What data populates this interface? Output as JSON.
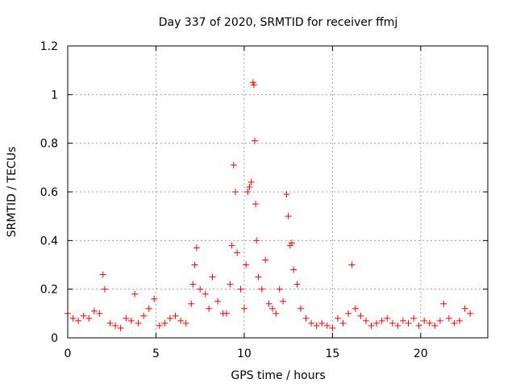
{
  "chart_data": {
    "type": "scatter",
    "title": "Day 337 of 2020, SRMTID for receiver ffmj",
    "xlabel": "GPS time / hours",
    "ylabel": "SRMTID / TECUs",
    "xlim": [
      0,
      23.8
    ],
    "ylim": [
      0,
      1.2
    ],
    "xticks": [
      0,
      5,
      10,
      15,
      20
    ],
    "xtick_labels": [
      "0",
      "5",
      "10",
      "15",
      "20"
    ],
    "yticks": [
      0,
      0.2,
      0.4,
      0.6,
      0.8,
      1,
      1.2
    ],
    "ytick_labels": [
      "0",
      "0.2",
      "0.4",
      "0.6",
      "0.8",
      "1",
      "1.2"
    ],
    "grid": true,
    "marker": "+",
    "color": "#ff0000",
    "series": [
      {
        "name": "SRMTID",
        "x": [
          0.0,
          0.3,
          0.6,
          0.9,
          1.2,
          1.5,
          1.8,
          2.0,
          2.1,
          2.4,
          2.7,
          3.0,
          3.3,
          3.6,
          3.8,
          4.0,
          4.3,
          4.6,
          4.9,
          5.2,
          5.5,
          5.8,
          6.1,
          6.4,
          6.7,
          7.0,
          7.1,
          7.2,
          7.3,
          7.5,
          7.8,
          8.0,
          8.2,
          8.5,
          8.8,
          9.0,
          9.2,
          9.3,
          9.4,
          9.5,
          9.6,
          9.8,
          10.0,
          10.1,
          10.2,
          10.3,
          10.4,
          10.5,
          10.55,
          10.6,
          10.65,
          10.7,
          10.8,
          11.0,
          11.2,
          11.4,
          11.6,
          11.8,
          12.0,
          12.2,
          12.4,
          12.5,
          12.6,
          12.7,
          12.8,
          13.0,
          13.2,
          13.5,
          13.8,
          14.1,
          14.4,
          14.7,
          15.0,
          15.3,
          15.6,
          15.9,
          16.1,
          16.3,
          16.6,
          16.9,
          17.2,
          17.5,
          17.8,
          18.1,
          18.4,
          18.7,
          19.0,
          19.3,
          19.6,
          19.9,
          20.2,
          20.5,
          20.8,
          21.1,
          21.3,
          21.6,
          21.9,
          22.2,
          22.5,
          22.8
        ],
        "y": [
          0.1,
          0.08,
          0.07,
          0.09,
          0.08,
          0.11,
          0.1,
          0.26,
          0.2,
          0.06,
          0.05,
          0.04,
          0.08,
          0.07,
          0.18,
          0.06,
          0.09,
          0.12,
          0.16,
          0.05,
          0.06,
          0.08,
          0.09,
          0.07,
          0.06,
          0.14,
          0.22,
          0.3,
          0.37,
          0.2,
          0.18,
          0.12,
          0.25,
          0.15,
          0.1,
          0.1,
          0.22,
          0.38,
          0.71,
          0.6,
          0.35,
          0.2,
          0.12,
          0.3,
          0.6,
          0.62,
          0.64,
          1.05,
          1.04,
          0.81,
          0.55,
          0.4,
          0.25,
          0.2,
          0.32,
          0.14,
          0.12,
          0.1,
          0.2,
          0.15,
          0.59,
          0.5,
          0.38,
          0.39,
          0.28,
          0.22,
          0.12,
          0.08,
          0.06,
          0.05,
          0.06,
          0.05,
          0.04,
          0.08,
          0.06,
          0.1,
          0.3,
          0.12,
          0.09,
          0.07,
          0.05,
          0.06,
          0.07,
          0.08,
          0.06,
          0.05,
          0.07,
          0.06,
          0.08,
          0.05,
          0.07,
          0.06,
          0.05,
          0.07,
          0.14,
          0.08,
          0.06,
          0.07,
          0.12,
          0.1
        ]
      }
    ]
  }
}
